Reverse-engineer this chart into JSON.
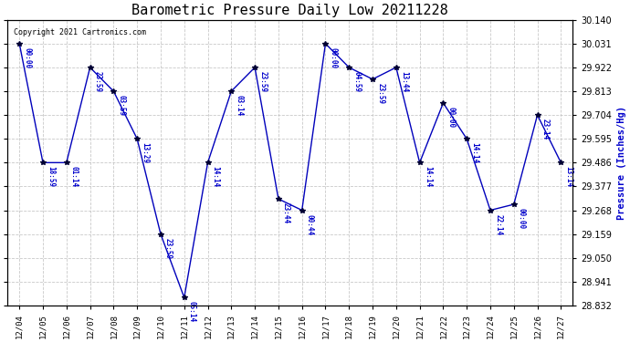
{
  "title": "Barometric Pressure Daily Low 20211228",
  "ylabel": "Pressure (Inches/Hg)",
  "copyright_text": "Copyright 2021 Cartronics.com",
  "line_color": "#0000bb",
  "marker_color": "#000033",
  "annotation_color": "#0000cc",
  "background_color": "#ffffff",
  "grid_color": "#bbbbbb",
  "title_color": "#000000",
  "ylabel_color": "#0000cc",
  "ymin": 28.832,
  "ymax": 30.14,
  "yticks": [
    28.832,
    28.941,
    29.05,
    29.159,
    29.268,
    29.377,
    29.486,
    29.595,
    29.704,
    29.813,
    29.922,
    30.031,
    30.14
  ],
  "dates": [
    "12/04",
    "12/05",
    "12/06",
    "12/07",
    "12/08",
    "12/09",
    "12/10",
    "12/11",
    "12/12",
    "12/13",
    "12/14",
    "12/15",
    "12/16",
    "12/17",
    "12/18",
    "12/19",
    "12/20",
    "12/21",
    "12/22",
    "12/23",
    "12/24",
    "12/25",
    "12/26",
    "12/27"
  ],
  "values": [
    30.031,
    29.486,
    29.486,
    29.922,
    29.813,
    29.595,
    29.159,
    28.868,
    29.486,
    29.813,
    29.922,
    29.32,
    29.268,
    30.031,
    29.922,
    29.868,
    29.922,
    29.486,
    29.759,
    29.595,
    29.268,
    29.295,
    29.704,
    29.486
  ],
  "annotations": [
    "00:00",
    "18:59",
    "01:14",
    "23:59",
    "03:59",
    "13:29",
    "23:59",
    "05:14",
    "14:14",
    "03:14",
    "23:59",
    "23:44",
    "00:44",
    "00:00",
    "04:59",
    "23:59",
    "13:44",
    "14:14",
    "00:00",
    "14:14",
    "22:14",
    "00:00",
    "23:14",
    "13:14"
  ],
  "font_family": "monospace"
}
